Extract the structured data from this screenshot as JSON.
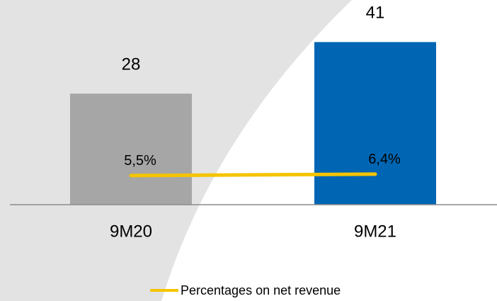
{
  "chart_data": {
    "type": "bar",
    "categories": [
      "9M20",
      "9M21"
    ],
    "series": [
      {
        "type": "bar",
        "colors": [
          "#a6a6a6",
          "#0066b3"
        ],
        "values": [
          28,
          41
        ]
      },
      {
        "type": "line",
        "name": "Percentages on net revenue",
        "color": "#f5c400",
        "axis": "y2",
        "values": [
          5.5,
          6.4
        ],
        "value_labels": [
          "5,5%",
          "6,4%"
        ]
      }
    ],
    "ylim": [
      0,
      50
    ],
    "y2lim": [
      -13,
      113
    ],
    "legend": "bottom"
  }
}
